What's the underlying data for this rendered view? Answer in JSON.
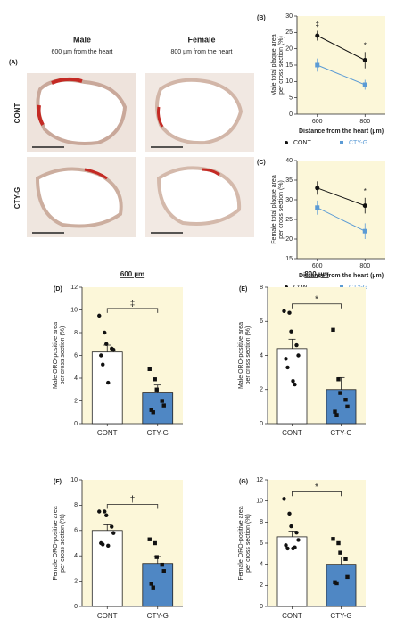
{
  "panel_a": {
    "label": "(A)",
    "columns": [
      {
        "title": "Male",
        "subtitle": "600 µm from the heart"
      },
      {
        "title": "Female",
        "subtitle": "800 µm from the heart"
      }
    ],
    "rows": [
      "CONT",
      "CTY-G"
    ]
  },
  "chart_data": [
    {
      "type": "line",
      "panel": "(B)",
      "ylabel": [
        "Male total plaque area",
        "per cross section (%)"
      ],
      "xlabel": "Distance from the heart (µm)",
      "x": [
        600,
        800
      ],
      "xlim": [
        515,
        885
      ],
      "xticks": [
        600,
        800
      ],
      "ylim": [
        0,
        30
      ],
      "yticks": [
        0,
        5,
        10,
        15,
        20,
        25,
        30
      ],
      "background": "#fcf7d9",
      "series": [
        {
          "name": "CONT",
          "color": "#111111",
          "marker": "circle",
          "values": [
            24,
            16.5
          ],
          "errors": [
            1.5,
            2.5
          ]
        },
        {
          "name": "CTY-G",
          "color": "#5b9bd5",
          "marker": "square",
          "values": [
            15,
            9
          ],
          "errors": [
            2,
            1.5
          ]
        }
      ],
      "annotations": [
        {
          "text": "‡",
          "x": 600
        },
        {
          "text": "*",
          "x": 800
        }
      ]
    },
    {
      "type": "line",
      "panel": "(C)",
      "ylabel": [
        "Female total plaque area",
        "per cross section (%)"
      ],
      "xlabel": "Distance from the heart (µm)",
      "x": [
        600,
        800
      ],
      "xlim": [
        515,
        885
      ],
      "xticks": [
        600,
        800
      ],
      "ylim": [
        15,
        40
      ],
      "yticks": [
        15,
        20,
        25,
        30,
        35,
        40
      ],
      "background": "#fcf7d9",
      "series": [
        {
          "name": "CONT",
          "color": "#111111",
          "marker": "circle",
          "values": [
            33,
            28.5
          ],
          "errors": [
            1.7,
            2
          ]
        },
        {
          "name": "CTY-G",
          "color": "#5b9bd5",
          "marker": "square",
          "values": [
            28,
            22
          ],
          "errors": [
            1.8,
            2
          ]
        }
      ],
      "annotations": [
        {
          "text": "*",
          "x": 800
        }
      ]
    },
    {
      "type": "bar",
      "panel": "(D)",
      "title": "600 µm",
      "ylabel": [
        "Male ORO-positive area",
        "per cross section (%)"
      ],
      "categories": [
        "CONT",
        "CTY-G"
      ],
      "values": [
        6.3,
        2.7
      ],
      "errors": [
        0.6,
        0.7
      ],
      "colors": [
        "#ffffff",
        "#4f87c4"
      ],
      "markers": [
        "circle",
        "square"
      ],
      "points": [
        [
          9.5,
          8.0,
          7.0,
          6.6,
          6.5,
          6.0,
          5.2,
          3.6
        ],
        [
          4.8,
          3.9,
          3.0,
          2.0,
          1.6,
          1.2,
          1.0
        ]
      ],
      "ylim": [
        0,
        12
      ],
      "yticks": [
        0,
        2,
        4,
        6,
        8,
        10,
        12
      ],
      "significance": "‡",
      "background": "#fcf7d9"
    },
    {
      "type": "bar",
      "panel": "(E)",
      "title": "800 µm",
      "ylabel": [
        "Male ORO-positive area",
        "per cross section (%)"
      ],
      "categories": [
        "CONT",
        "CTY-G"
      ],
      "values": [
        4.4,
        2.0
      ],
      "errors": [
        0.55,
        0.7
      ],
      "colors": [
        "#ffffff",
        "#4f87c4"
      ],
      "markers": [
        "circle",
        "square"
      ],
      "points": [
        [
          6.6,
          6.5,
          5.4,
          4.6,
          4.0,
          3.8,
          3.3,
          2.5,
          2.3
        ],
        [
          5.5,
          2.6,
          1.8,
          1.4,
          1.0,
          0.7,
          0.5
        ]
      ],
      "ylim": [
        0,
        8
      ],
      "yticks": [
        0,
        2,
        4,
        6,
        8
      ],
      "significance": "*",
      "background": "#fcf7d9"
    },
    {
      "type": "bar",
      "panel": "(F)",
      "ylabel": [
        "Female ORO-positive area",
        "per cross section (%)"
      ],
      "categories": [
        "CONT",
        "CTY-G"
      ],
      "values": [
        6.0,
        3.4
      ],
      "errors": [
        0.45,
        0.55
      ],
      "colors": [
        "#ffffff",
        "#4f87c4"
      ],
      "markers": [
        "circle",
        "square"
      ],
      "points": [
        [
          7.5,
          7.5,
          7.2,
          6.3,
          5.8,
          5.0,
          4.9,
          4.8
        ],
        [
          5.3,
          5.0,
          3.9,
          3.3,
          2.8,
          1.8,
          1.5
        ]
      ],
      "ylim": [
        0,
        10
      ],
      "yticks": [
        0,
        2,
        4,
        6,
        8,
        10
      ],
      "significance": "†",
      "background": "#fcf7d9"
    },
    {
      "type": "bar",
      "panel": "(G)",
      "ylabel": [
        "Female ORO-positive area",
        "per cross section (%)"
      ],
      "categories": [
        "CONT",
        "CTY-G"
      ],
      "values": [
        6.6,
        4.0
      ],
      "errors": [
        0.55,
        0.7
      ],
      "colors": [
        "#ffffff",
        "#4f87c4"
      ],
      "markers": [
        "circle",
        "square"
      ],
      "points": [
        [
          10.2,
          8.8,
          7.6,
          7.0,
          6.3,
          5.8,
          5.5,
          5.5,
          5.6
        ],
        [
          6.4,
          6.0,
          5.1,
          4.5,
          2.8,
          2.3,
          2.2
        ]
      ],
      "ylim": [
        0,
        12
      ],
      "yticks": [
        0,
        2,
        4,
        6,
        8,
        10,
        12
      ],
      "significance": "*",
      "background": "#fcf7d9"
    }
  ]
}
